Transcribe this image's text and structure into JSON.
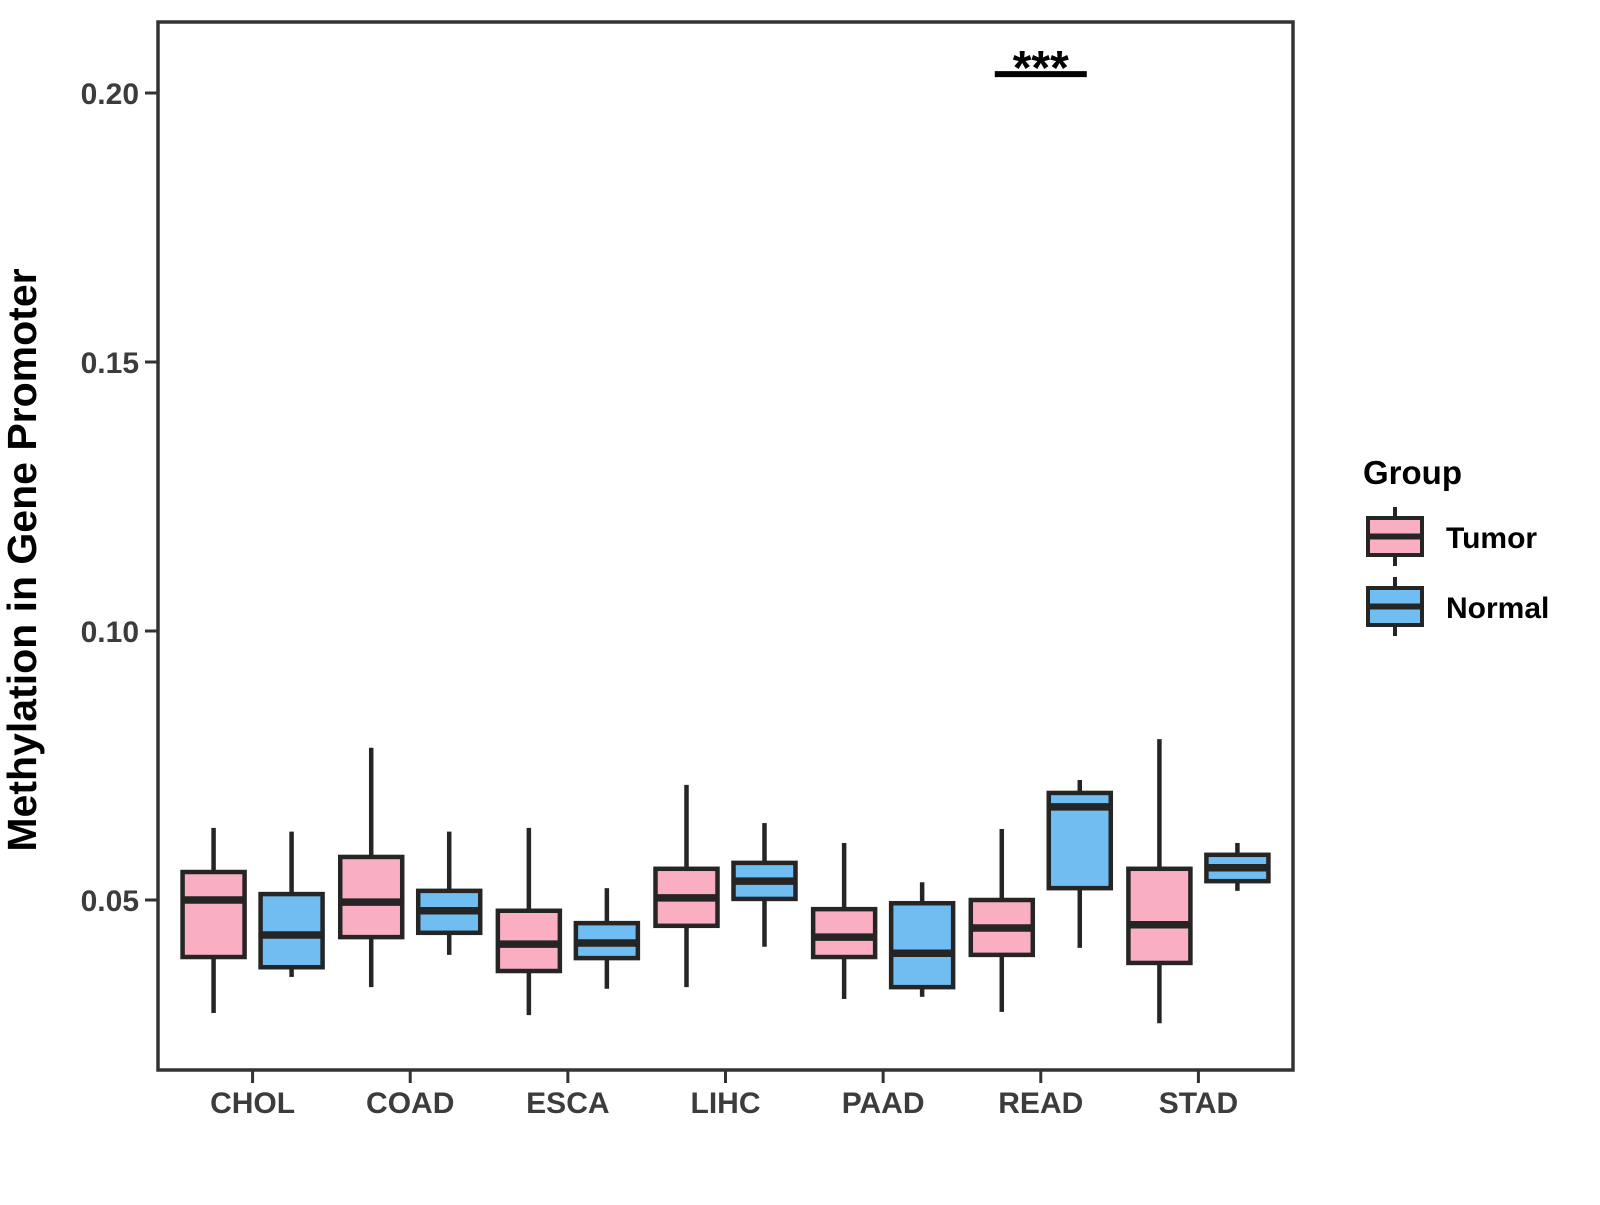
{
  "chart_data": {
    "type": "grouped_boxplot",
    "title": "",
    "xlabel": "",
    "ylabel": "Methylation in Gene Promoter",
    "categories": [
      "CHOL",
      "COAD",
      "ESCA",
      "LIHC",
      "PAAD",
      "READ",
      "STAD"
    ],
    "series": [
      {
        "name": "Tumor",
        "color": "#F9AFC1",
        "boxes": [
          {
            "whislo": 0.029,
            "q1": 0.0394,
            "med": 0.05,
            "q3": 0.0552,
            "whishi": 0.0634
          },
          {
            "whislo": 0.0338,
            "q1": 0.0431,
            "med": 0.0496,
            "q3": 0.058,
            "whishi": 0.0783
          },
          {
            "whislo": 0.0286,
            "q1": 0.0368,
            "med": 0.0418,
            "q3": 0.048,
            "whishi": 0.0634
          },
          {
            "whislo": 0.0338,
            "q1": 0.0452,
            "med": 0.0504,
            "q3": 0.0558,
            "whishi": 0.0714
          },
          {
            "whislo": 0.0316,
            "q1": 0.0394,
            "med": 0.0431,
            "q3": 0.0483,
            "whishi": 0.0606
          },
          {
            "whislo": 0.0292,
            "q1": 0.0398,
            "med": 0.0448,
            "q3": 0.05,
            "whishi": 0.0632
          },
          {
            "whislo": 0.0271,
            "q1": 0.0383,
            "med": 0.0454,
            "q3": 0.0558,
            "whishi": 0.0799
          }
        ]
      },
      {
        "name": "Normal",
        "color": "#70BDF2",
        "boxes": [
          {
            "whislo": 0.0357,
            "q1": 0.0375,
            "med": 0.0435,
            "q3": 0.0511,
            "whishi": 0.0627
          },
          {
            "whislo": 0.0398,
            "q1": 0.0439,
            "med": 0.048,
            "q3": 0.0517,
            "whishi": 0.0627
          },
          {
            "whislo": 0.0335,
            "q1": 0.0392,
            "med": 0.042,
            "q3": 0.0457,
            "whishi": 0.0522
          },
          {
            "whislo": 0.0413,
            "q1": 0.0502,
            "med": 0.0535,
            "q3": 0.0569,
            "whishi": 0.0643
          },
          {
            "whislo": 0.032,
            "q1": 0.0338,
            "med": 0.0401,
            "q3": 0.0494,
            "whishi": 0.0533
          },
          {
            "whislo": 0.0411,
            "q1": 0.0522,
            "med": 0.0673,
            "q3": 0.0699,
            "whishi": 0.0723
          },
          {
            "whislo": 0.0517,
            "q1": 0.0535,
            "med": 0.056,
            "q3": 0.0584,
            "whishi": 0.0606
          }
        ]
      }
    ],
    "yticks": [
      0.05,
      0.1,
      0.15,
      0.2
    ],
    "ytick_labels": [
      "0.05",
      "0.10",
      "0.15",
      "0.20"
    ],
    "ylim": [
      0.0184,
      0.2132
    ],
    "grid": false,
    "legend": {
      "title": "Group",
      "position": "right",
      "entries": [
        "Tumor",
        "Normal"
      ]
    },
    "annotation": {
      "label": "***",
      "category": "READ",
      "spans": [
        "Tumor",
        "Normal"
      ],
      "y_line": 0.2035
    }
  },
  "styles": {
    "box_border": "#252525",
    "axis_line": "#333333",
    "axis_text": "#3C3C3C",
    "title_text": "#000000",
    "background": "#ffffff"
  }
}
